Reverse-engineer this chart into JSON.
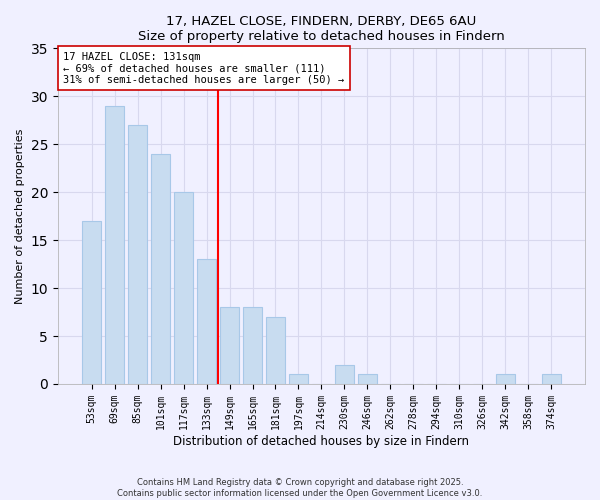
{
  "title": "17, HAZEL CLOSE, FINDERN, DERBY, DE65 6AU",
  "subtitle": "Size of property relative to detached houses in Findern",
  "xlabel": "Distribution of detached houses by size in Findern",
  "ylabel": "Number of detached properties",
  "bar_labels": [
    "53sqm",
    "69sqm",
    "85sqm",
    "101sqm",
    "117sqm",
    "133sqm",
    "149sqm",
    "165sqm",
    "181sqm",
    "197sqm",
    "214sqm",
    "230sqm",
    "246sqm",
    "262sqm",
    "278sqm",
    "294sqm",
    "310sqm",
    "326sqm",
    "342sqm",
    "358sqm",
    "374sqm"
  ],
  "bar_values": [
    17,
    29,
    27,
    24,
    20,
    13,
    8,
    8,
    7,
    1,
    0,
    2,
    1,
    0,
    0,
    0,
    0,
    0,
    1,
    0,
    1
  ],
  "bar_color": "#c8dcf0",
  "bar_edge_color": "#a8c8e8",
  "vline_x": 5.5,
  "vline_color": "red",
  "ylim": [
    0,
    35
  ],
  "yticks": [
    0,
    5,
    10,
    15,
    20,
    25,
    30,
    35
  ],
  "annotation_title": "17 HAZEL CLOSE: 131sqm",
  "annotation_line1": "← 69% of detached houses are smaller (111)",
  "annotation_line2": "31% of semi-detached houses are larger (50) →",
  "footnote1": "Contains HM Land Registry data © Crown copyright and database right 2025.",
  "footnote2": "Contains public sector information licensed under the Open Government Licence v3.0.",
  "background_color": "#f0f0ff",
  "grid_color": "#d8d8ee"
}
